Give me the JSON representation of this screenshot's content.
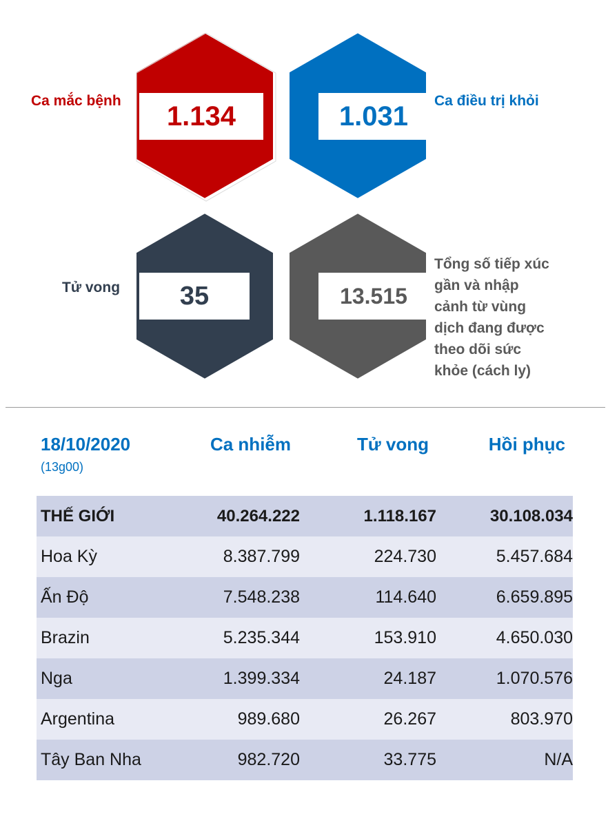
{
  "stats": {
    "cases": {
      "label": "Ca mắc bệnh",
      "value": "1.134",
      "color": "#c00000"
    },
    "recovered": {
      "label": "Ca điều trị khỏi",
      "value": "1.031",
      "color": "#0070c0"
    },
    "deaths": {
      "label": "Tử vong",
      "value": "35",
      "color": "#323f4f"
    },
    "monitored": {
      "label_lines": [
        "Tổng số tiếp xúc",
        "gần và nhập",
        "cảnh từ vùng",
        "dịch đang được",
        "theo dõi sức",
        "khỏe (cách ly)"
      ],
      "value": "13.515",
      "color": "#595959"
    }
  },
  "table": {
    "date": "18/10/2020",
    "time": "(13g00)",
    "headers": [
      "Ca nhiễm",
      "Tử vong",
      "Hồi phục"
    ],
    "rows": [
      [
        "THẾ GIỚI",
        "40.264.222",
        "1.118.167",
        "30.108.034"
      ],
      [
        "Hoa Kỳ",
        "8.387.799",
        "224.730",
        "5.457.684"
      ],
      [
        "Ấn Độ",
        "7.548.238",
        "114.640",
        "6.659.895"
      ],
      [
        "Brazin",
        "5.235.344",
        "153.910",
        "4.650.030"
      ],
      [
        "Nga",
        "1.399.334",
        "24.187",
        "1.070.576"
      ],
      [
        "Argentina",
        "989.680",
        "26.267",
        "803.970"
      ],
      [
        "Tây Ban Nha",
        "982.720",
        "33.775",
        "N/A"
      ]
    ]
  }
}
